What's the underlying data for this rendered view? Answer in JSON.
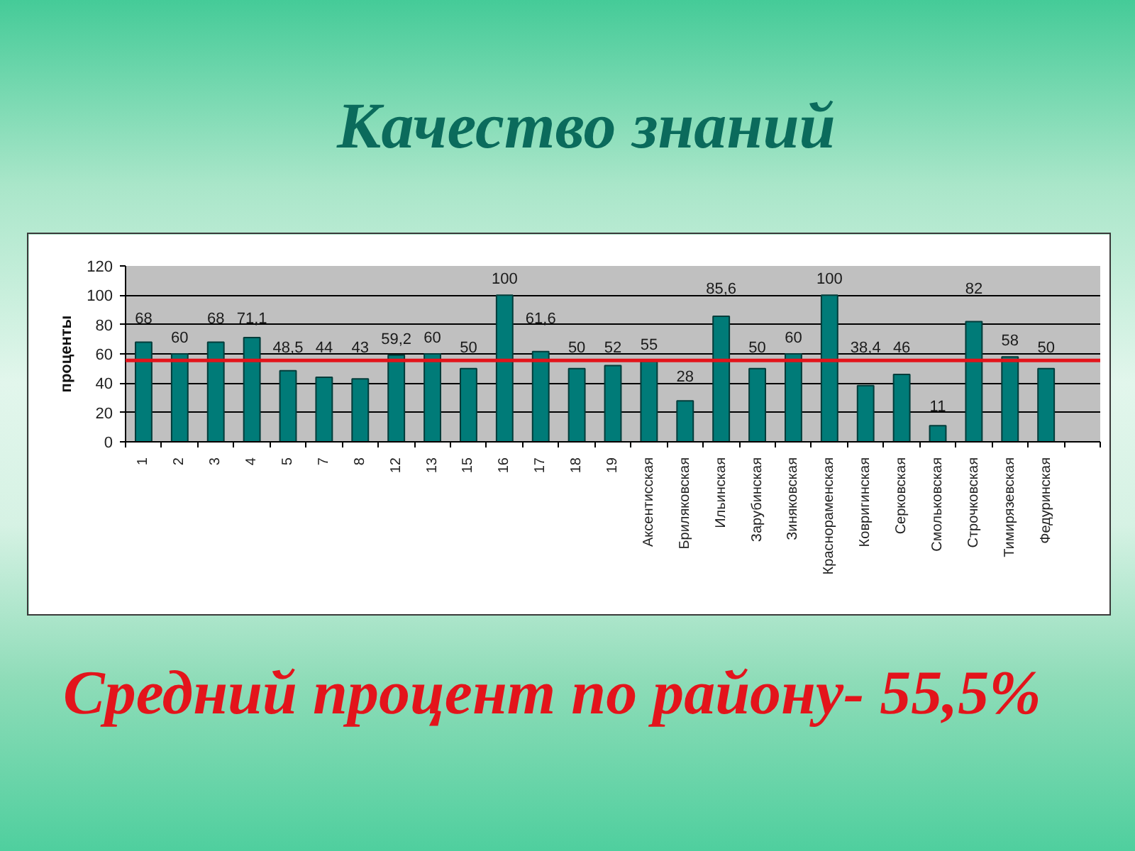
{
  "chart_data": {
    "type": "bar",
    "title": "Качество знаний",
    "ylabel": "проценты",
    "categories": [
      "1",
      "2",
      "3",
      "4",
      "5",
      "7",
      "8",
      "12",
      "13",
      "15",
      "16",
      "17",
      "18",
      "19",
      "Аксентисская",
      "Бриляковская",
      "Ильинская",
      "Зарубинская",
      "Зиняковская",
      "Краснораменская",
      "Ковригинская",
      "Серковская",
      "Смольковская",
      "Строчковская",
      "Тимирязевская",
      "Федуринская",
      null
    ],
    "values": [
      68,
      60,
      68,
      71.1,
      48.5,
      44,
      43,
      59.2,
      60,
      50,
      100,
      61.6,
      50,
      52,
      55,
      28,
      85.6,
      50,
      60,
      100,
      38.4,
      46,
      11,
      82,
      58,
      50,
      null
    ],
    "value_labels": [
      "68",
      "60",
      "68",
      "71,1",
      "48,5",
      "44",
      "43",
      "59,2",
      "60",
      "50",
      "100",
      "61,6",
      "50",
      "52",
      "55",
      "28",
      "85,6",
      "50",
      "60",
      "100",
      "38,4",
      "46",
      "11",
      "82",
      "58",
      "50",
      null
    ],
    "color": "#007b78",
    "ylim": [
      0,
      120
    ],
    "yticks": [
      0,
      20,
      40,
      60,
      80,
      100,
      120
    ],
    "grid": "y",
    "ref_lines": [
      {
        "axis": "y",
        "value": 55.5,
        "color": "#e3141b"
      }
    ],
    "annotations": [
      "Средний процент по району- 55,5%"
    ]
  }
}
